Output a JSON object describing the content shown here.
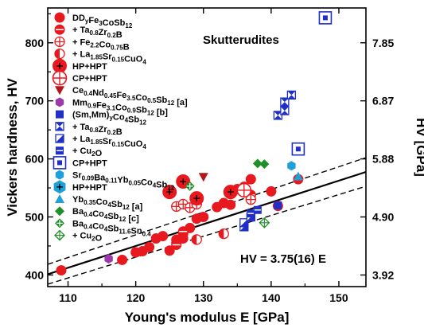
{
  "chart_data": {
    "type": "scatter",
    "xlabel": "Young's modulus E [GPa]",
    "ylabel": "Vickers hardness, HV",
    "y2label": "HV [GPa]",
    "xlim": [
      107,
      154
    ],
    "ylim": [
      380,
      860
    ],
    "x_ticks": [
      "110",
      "120",
      "130",
      "140",
      "150"
    ],
    "y_ticks": [
      "400",
      "500",
      "600",
      "700",
      "800"
    ],
    "y2_ticks": [
      "3.92",
      "4.90",
      "5.88",
      "6.87",
      "7.85"
    ],
    "y2_tick_values": [
      400,
      500,
      600,
      700,
      800
    ],
    "annotations": {
      "title": "Skutterudites",
      "fit_label": "HV = 3.75(16) E"
    },
    "fit": {
      "slope": 3.75,
      "slope_upper": 3.91,
      "slope_lower": 3.59
    },
    "colors": {
      "red": "#e8191e",
      "dark_red": "#b3171b",
      "purple": "#9b3aa8",
      "blue": "#1f2fc8",
      "cyan": "#1da1d6",
      "green": "#1f8f2a"
    },
    "legend": [
      {
        "label": "DD",
        "sub1": "y",
        "mid": "Fe",
        "sub2": "3",
        "tail": "CoSb",
        "sub3": "12",
        "marker": "circle",
        "color": "red"
      },
      {
        "label": "+ Ta",
        "sub1": "0.8",
        "mid": "Zr",
        "sub2": "0.2",
        "tail": "B",
        "sub3": "",
        "marker": "circle-lined",
        "color": "red"
      },
      {
        "label": "+ Fe",
        "sub1": "2.2",
        "mid": "Co",
        "sub2": "0.75",
        "tail": "B",
        "sub3": "",
        "marker": "circle-cross",
        "color": "red"
      },
      {
        "label": "+ La",
        "sub1": "1.85",
        "mid": "Sr",
        "sub2": "0.15",
        "tail": "CuO",
        "sub3": "4",
        "marker": "circle-half",
        "color": "red"
      },
      {
        "label": "HP+HPT",
        "sub1": "",
        "mid": "",
        "sub2": "",
        "tail": "",
        "sub3": "",
        "marker": "circle-big-plus",
        "color": "red"
      },
      {
        "label": "CP+HPT",
        "sub1": "",
        "mid": "",
        "sub2": "",
        "tail": "",
        "sub3": "",
        "marker": "circle-big-open",
        "color": "red"
      },
      {
        "label": "Ce",
        "sub1": "0.4",
        "mid": "Nd",
        "sub2": "0.45",
        "tail": "Fe",
        "sub3": "3.5",
        "tail2": "Co",
        "sub4": "0.5",
        "tail3": "Sb",
        "sub5": "12",
        "tail4": " [a]",
        "marker": "triangle-down",
        "color": "dark_red"
      },
      {
        "label": "Mm",
        "sub1": "0.9",
        "mid": "Fe",
        "sub2": "3.1",
        "tail": "Co",
        "sub3": "0.9",
        "tail2": "Sb",
        "sub4": "12",
        "tail3": " [b]",
        "marker": "hexagon",
        "color": "purple"
      },
      {
        "label": "(Sm,Mm)",
        "sub1": "y",
        "mid": "Co",
        "sub2": "4",
        "tail": "Sb",
        "sub3": "12",
        "marker": "square",
        "color": "blue"
      },
      {
        "label": "+ Ta",
        "sub1": "0.8",
        "mid": "Zr",
        "sub2": "0.2",
        "tail": "B",
        "sub3": "",
        "marker": "square-hourglass",
        "color": "blue"
      },
      {
        "label": "+ La",
        "sub1": "1.85",
        "mid": "Sr",
        "sub2": "0.15",
        "tail": "CuO",
        "sub3": "4",
        "marker": "square-half",
        "color": "blue"
      },
      {
        "label": "+ Cu",
        "sub1": "",
        "mid": "",
        "sub2": "2",
        "tail": "O",
        "sub3": "",
        "marker": "square-lined",
        "color": "blue"
      },
      {
        "label": "CP+HPT",
        "sub1": "",
        "mid": "",
        "sub2": "",
        "tail": "",
        "sub3": "",
        "marker": "square-big-open",
        "color": "blue"
      },
      {
        "label": "Sr",
        "sub1": "0.09",
        "mid": "Ba",
        "sub2": "0.11",
        "tail": "Yb",
        "sub3": "0.05",
        "tail2": "Co",
        "sub4": "4",
        "tail3": "Sb",
        "sub5": "12",
        "marker": "hexagon",
        "color": "cyan"
      },
      {
        "label": "HP+HPT",
        "sub1": "",
        "mid": "",
        "sub2": "",
        "tail": "",
        "sub3": "",
        "marker": "hexagon-big-plus",
        "color": "cyan"
      },
      {
        "label": "Yb",
        "sub1": "0.35",
        "mid": "Co",
        "sub2": "4",
        "tail": "Sb",
        "sub3": "12",
        "tail2": " [a]",
        "marker": "triangle-up",
        "color": "cyan"
      },
      {
        "label": "Ba",
        "sub1": "0.4",
        "mid": "Co",
        "sub2": "4",
        "tail": "Sb",
        "sub3": "12",
        "tail2": " [c]",
        "marker": "diamond",
        "color": "green"
      },
      {
        "label": "Ba",
        "sub1": "0.4",
        "mid": "Co",
        "sub2": "4",
        "tail": "Sb",
        "sub3": "11.6",
        "tail2": "Sn",
        "sub4": "0.4",
        "marker": "diamond-cross",
        "color": "green"
      },
      {
        "label": "+ Cu",
        "sub1": "",
        "mid": "",
        "sub2": "2",
        "tail": "O",
        "sub3": "",
        "marker": "diamond-open-cross",
        "color": "green"
      }
    ],
    "series": [
      {
        "marker": "circle",
        "color": "red",
        "points": [
          [
            109,
            408
          ],
          [
            118,
            426
          ],
          [
            120,
            439
          ],
          [
            121,
            441
          ],
          [
            122,
            448
          ],
          [
            123,
            463
          ],
          [
            124,
            467
          ],
          [
            125,
            442
          ],
          [
            126,
            461
          ],
          [
            126,
            455
          ],
          [
            127,
            471
          ],
          [
            127,
            463
          ],
          [
            128,
            481
          ],
          [
            129,
            497
          ],
          [
            130,
            500
          ],
          [
            132,
            517
          ],
          [
            133,
            524
          ],
          [
            134,
            521
          ],
          [
            135,
            548
          ],
          [
            136,
            552
          ],
          [
            137,
            565
          ],
          [
            140,
            544
          ],
          [
            141,
            519
          ]
        ]
      },
      {
        "marker": "circle-lined",
        "color": "red",
        "points": [
          [
            126,
            452
          ],
          [
            127,
            475
          ],
          [
            137,
            538
          ],
          [
            144,
            565
          ]
        ]
      },
      {
        "marker": "circle-cross",
        "color": "red",
        "points": [
          [
            126,
            518
          ],
          [
            127,
            522
          ],
          [
            128,
            516
          ],
          [
            129,
            522
          ],
          [
            137,
            530
          ]
        ]
      },
      {
        "marker": "circle-half",
        "color": "red",
        "points": [
          [
            129,
            461
          ],
          [
            133,
            471
          ]
        ]
      },
      {
        "marker": "circle-big-plus",
        "color": "red",
        "points": [
          [
            125,
            543
          ],
          [
            127,
            561
          ],
          [
            129,
            532
          ],
          [
            134,
            543
          ]
        ]
      },
      {
        "marker": "circle-big-open",
        "color": "red",
        "points": [
          [
            136,
            546
          ]
        ]
      },
      {
        "marker": "triangle-down",
        "color": "dark_red",
        "points": [
          [
            130,
            569
          ]
        ]
      },
      {
        "marker": "hexagon",
        "color": "purple",
        "points": [
          [
            116,
            428
          ]
        ]
      },
      {
        "marker": "square",
        "color": "blue",
        "points": [
          [
            141,
            520
          ]
        ]
      },
      {
        "marker": "square-hourglass",
        "color": "blue",
        "points": [
          [
            141,
            675
          ],
          [
            142,
            698
          ],
          [
            142,
            683
          ],
          [
            143,
            710
          ]
        ]
      },
      {
        "marker": "square-half",
        "color": "blue",
        "points": [
          [
            136,
            483
          ],
          [
            136,
            490
          ],
          [
            137,
            500
          ]
        ]
      },
      {
        "marker": "square-lined",
        "color": "blue",
        "points": [
          [
            137,
            506
          ],
          [
            138,
            512
          ]
        ]
      },
      {
        "marker": "square-big-open",
        "color": "blue",
        "points": [
          [
            144,
            617
          ],
          [
            148,
            843
          ]
        ]
      },
      {
        "marker": "hexagon",
        "color": "cyan",
        "points": [
          [
            143,
            588
          ]
        ]
      },
      {
        "marker": "triangle-up",
        "color": "cyan",
        "points": [
          [
            144,
            570
          ]
        ]
      },
      {
        "marker": "diamond",
        "color": "green",
        "points": [
          [
            138,
            592
          ],
          [
            139,
            591
          ]
        ]
      },
      {
        "marker": "diamond-cross",
        "color": "green",
        "points": [
          [
            128,
            553
          ]
        ]
      },
      {
        "marker": "diamond-open-cross",
        "color": "green",
        "points": [
          [
            139,
            490
          ]
        ]
      }
    ]
  }
}
